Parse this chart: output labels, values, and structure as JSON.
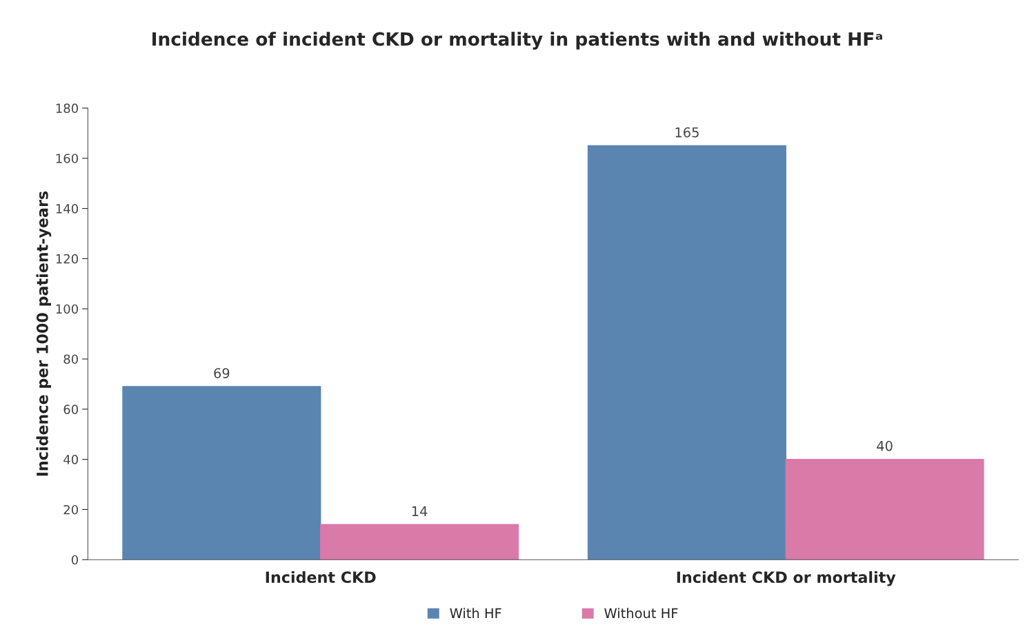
{
  "chart_data": {
    "type": "bar",
    "title": "Incidence of incident CKD or mortality in patients with and without HFᵃ",
    "ylabel": "Incidence per 1000 patient-years",
    "categories": [
      "Incident CKD",
      "Incident CKD or mortality"
    ],
    "series": [
      {
        "name": "With HF",
        "color": "#5a85b0",
        "values": [
          69,
          165
        ]
      },
      {
        "name": "Without HF",
        "color": "#d97aa9",
        "values": [
          14,
          40
        ]
      }
    ],
    "ylim": [
      0,
      180
    ],
    "yticks": [
      0,
      20,
      40,
      60,
      80,
      100,
      120,
      140,
      160,
      180
    ],
    "data_labels": true,
    "grid": false,
    "legend": "bottom"
  }
}
